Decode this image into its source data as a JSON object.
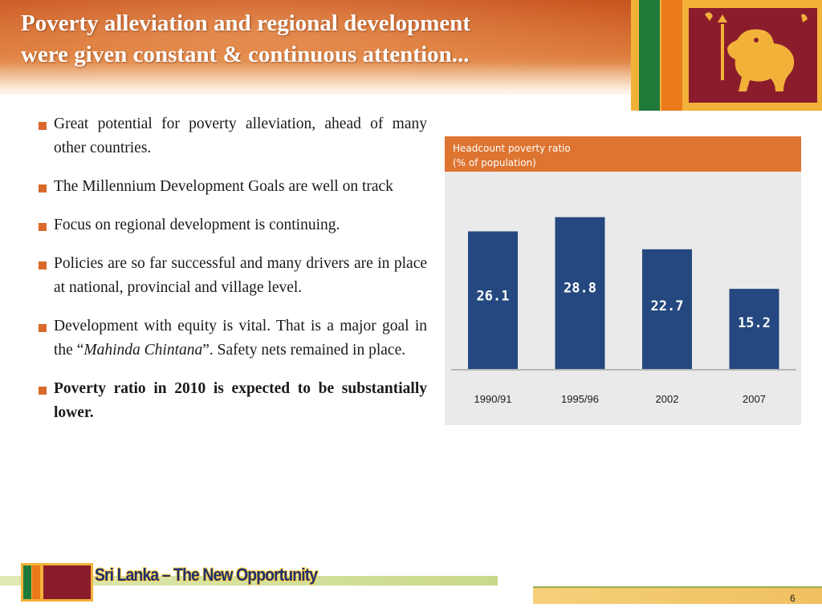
{
  "slide": {
    "title_line1": "Poverty alleviation and regional development",
    "title_line2": "were given constant & continuous attention...",
    "colors": {
      "accent": "#dd7430",
      "bar": "#24487f",
      "title_bg": "#cf5f25"
    }
  },
  "bullets": {
    "b1": "Great potential for poverty alleviation,  ahead of many other countries.",
    "b2": "The Millennium Development Goals are well on track",
    "b3": "Focus on regional development is continuing.",
    "b4": "Policies are so far successful and many drivers are in place at national, provincial and village level.",
    "b5_pre": "Development with equity is vital. That is a major goal in the “",
    "b5_em": "Mahinda Chintana",
    "b5_post": "”. Safety nets remained in place.",
    "b6": "Poverty ratio in 2010 is expected to be substantially lower."
  },
  "chart_data": {
    "type": "bar",
    "title_line1": "Headcount poverty ratio",
    "title_line2": "(% of population)",
    "categories": [
      "1990/91",
      "1995/96",
      "2002",
      "2007"
    ],
    "values": [
      26.1,
      28.8,
      22.7,
      15.2
    ],
    "value_labels": [
      "26.1",
      "28.8",
      "22.7",
      "15.2"
    ],
    "ylim": [
      0,
      35
    ],
    "grid": false,
    "bar_color": "#24487f"
  },
  "footer": {
    "tagline": "Sri Lanka – The New Opportunity",
    "page_number": "6"
  }
}
